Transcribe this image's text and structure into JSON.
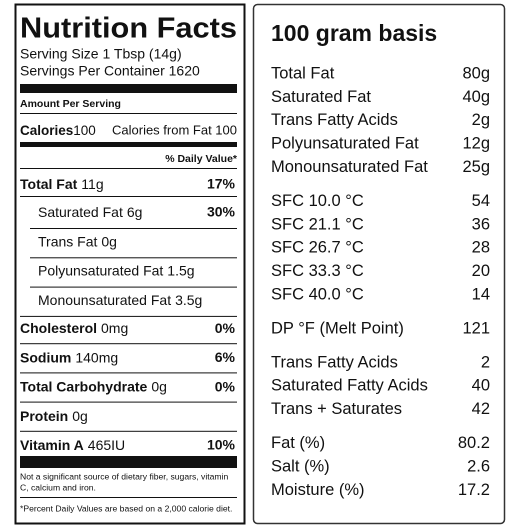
{
  "label": {
    "title": "Nutrition Facts",
    "serving_size": "Serving Size 1 Tbsp (14g)",
    "servings_per_container": "Servings Per Container 1620",
    "amount_per_serving": "Amount Per Serving",
    "calories": {
      "name": "Calories",
      "amount": "100",
      "from_fat": "Calories from Fat 100"
    },
    "daily_value_header": "% Daily Value*",
    "nutrients": [
      {
        "name": "Total Fat",
        "amount": "11g",
        "dv": "17%",
        "sub": [
          {
            "name": "Saturated Fat",
            "amount": "6g",
            "dv": "30%"
          },
          {
            "name": "Trans Fat",
            "amount": "0g"
          },
          {
            "name": "Polyunsaturated Fat",
            "amount": "1.5g"
          },
          {
            "name": "Monounsaturated Fat",
            "amount": "3.5g"
          }
        ]
      },
      {
        "name": "Cholesterol",
        "amount": "0mg",
        "dv": "0%"
      },
      {
        "name": "Sodium",
        "amount": "140mg",
        "dv": "6%"
      },
      {
        "name": "Total Carbohydrate",
        "amount": "0g",
        "dv": "0%"
      },
      {
        "name": "Protein",
        "amount": "0g"
      },
      {
        "name": "Vitamin A",
        "amount": "465IU",
        "dv": "10%"
      }
    ],
    "footnotes": [
      [
        "Not a significant source of dietary fiber, sugars, vitamin",
        "C, calcium and iron."
      ],
      [
        "*Percent Daily Values are based on a 2,000  calorie diet."
      ]
    ]
  },
  "basis": {
    "title": "100 gram basis",
    "groups": [
      [
        {
          "label": "Total Fat",
          "value": "80g"
        },
        {
          "label": "Saturated Fat",
          "value": "40g"
        },
        {
          "label": "Trans Fatty Acids",
          "value": "2g"
        },
        {
          "label": "Polyunsaturated Fat",
          "value": "12g"
        },
        {
          "label": "Monounsaturated Fat",
          "value": "25g"
        }
      ],
      [
        {
          "label": "SFC 10.0 °C",
          "value": "54"
        },
        {
          "label": "SFC 21.1 °C",
          "value": "36"
        },
        {
          "label": "SFC 26.7 °C",
          "value": "28"
        },
        {
          "label": "SFC 33.3 °C",
          "value": "20"
        },
        {
          "label": "SFC 40.0 °C",
          "value": "14"
        }
      ],
      [
        {
          "label": "DP °F (Melt Point)",
          "value": "121"
        }
      ],
      [
        {
          "label": "Trans Fatty Acids",
          "value": "2"
        },
        {
          "label": "Saturated Fatty Acids",
          "value": "40"
        },
        {
          "label": "Trans + Saturates",
          "value": "42"
        }
      ],
      [
        {
          "label": "Fat (%)",
          "value": "80.2"
        },
        {
          "label": "Salt (%)",
          "value": "2.6"
        },
        {
          "label": "Moisture (%)",
          "value": "17.2"
        }
      ]
    ]
  }
}
